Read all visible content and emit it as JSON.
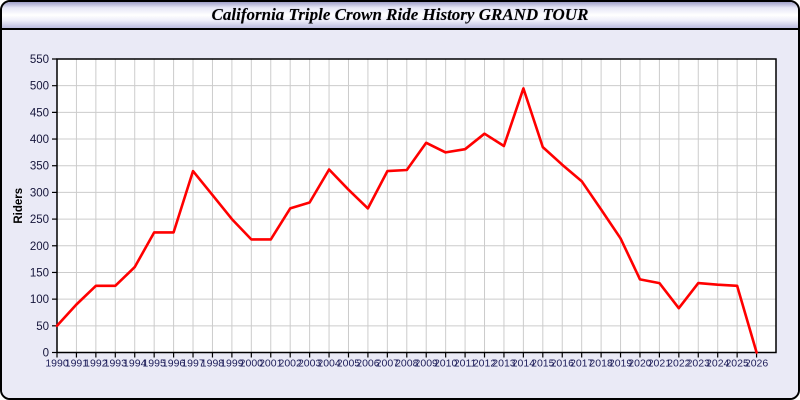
{
  "window": {
    "title": "California Triple Crown Ride History GRAND TOUR"
  },
  "chart_data": {
    "type": "line",
    "title": "California Triple Crown Ride History GRAND TOUR",
    "xlabel": "",
    "ylabel": "Riders",
    "ylim": [
      0,
      550
    ],
    "ytick_step": 50,
    "grid": true,
    "legend": "none",
    "bg": "#eaeaf6",
    "plot_bg": "#ffffff",
    "grid_color": "#cccccc",
    "axis_color": "#000000",
    "ytick_label_color": "#15153a",
    "xtick_label_color": "#1e1e5a",
    "x": [
      1990,
      1991,
      1992,
      1993,
      1994,
      1995,
      1996,
      1997,
      1998,
      1999,
      2000,
      2001,
      2002,
      2003,
      2004,
      2005,
      2006,
      2007,
      2008,
      2009,
      2010,
      2011,
      2012,
      2013,
      2014,
      2015,
      2016,
      2017,
      2018,
      2019,
      2020,
      2021,
      2022,
      2023,
      2024,
      2025,
      2026
    ],
    "series": [
      {
        "name": "Riders",
        "color": "#ff0000",
        "values": [
          50,
          90,
          125,
          125,
          160,
          225,
          225,
          340,
          295,
          250,
          212,
          212,
          270,
          281,
          343,
          305,
          270,
          340,
          342,
          393,
          375,
          381,
          410,
          387,
          495,
          385,
          352,
          321,
          268,
          214,
          137,
          130,
          83,
          130,
          127,
          125,
          0
        ]
      }
    ]
  }
}
